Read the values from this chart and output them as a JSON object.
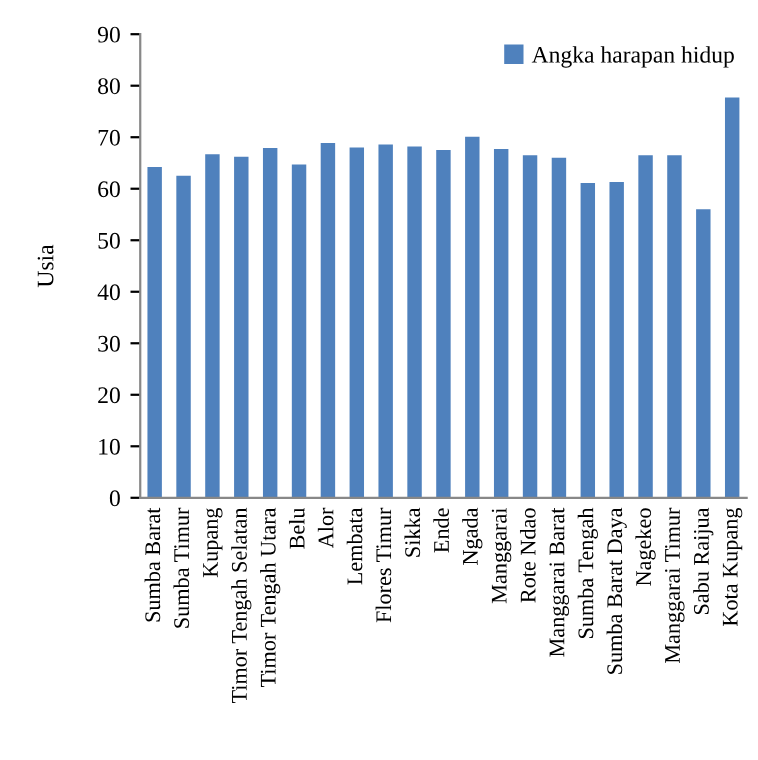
{
  "chart_data": {
    "type": "bar",
    "ylabel": "Usia",
    "categories": [
      "Sumba Barat",
      "Sumba Timur",
      "Kupang",
      "Timor Tengah Selatan",
      "Timor Tengah Utara",
      "Belu",
      "Alor",
      "Lembata",
      "Flores Timur",
      "Sikka",
      "Ende",
      "Ngada",
      "Manggarai",
      "Rote Ndao",
      "Manggarai Barat",
      "Sumba Tengah",
      "Sumba Barat Daya",
      "Nagekeo",
      "Manggarai Timur",
      "Sabu Raijua",
      "Kota Kupang"
    ],
    "series": [
      {
        "name": "Angka harapan hidup",
        "color": "#4f81bd",
        "values": [
          64.2,
          62.5,
          66.7,
          66.2,
          67.9,
          64.7,
          68.9,
          68.0,
          68.6,
          68.2,
          67.5,
          70.1,
          67.7,
          66.5,
          66.0,
          61.1,
          61.3,
          66.5,
          66.5,
          56.0,
          77.7
        ]
      }
    ],
    "ylim": [
      0,
      90
    ],
    "yticks": [
      0,
      10,
      20,
      30,
      40,
      50,
      60,
      70,
      80,
      90
    ],
    "grid": false,
    "legend": "top right"
  }
}
